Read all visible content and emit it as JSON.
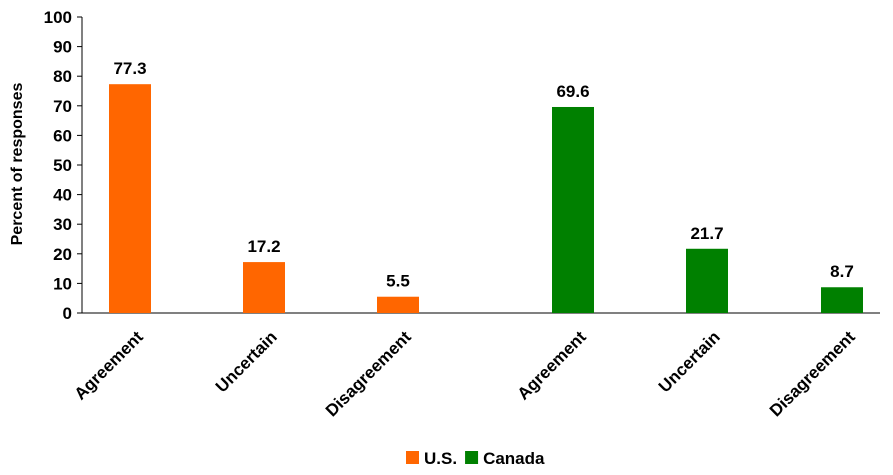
{
  "chart_data": {
    "type": "bar",
    "ylabel": "Percent of responses",
    "xlabel": "",
    "ylim": [
      0,
      100
    ],
    "yticks": [
      0,
      10,
      20,
      30,
      40,
      50,
      60,
      70,
      80,
      90,
      100
    ],
    "grid": false,
    "legend_position": "bottom",
    "series": [
      {
        "name": "U.S.",
        "color": "#FF6600",
        "categories": [
          "Agreement",
          "Uncertain",
          "Disagreement"
        ],
        "values": [
          77.3,
          17.2,
          5.5
        ],
        "labels": [
          "77.3",
          "17.2",
          "5.5"
        ]
      },
      {
        "name": "Canada",
        "color": "#008000",
        "categories": [
          "Agreement",
          "Uncertain",
          "Disagreement"
        ],
        "values": [
          69.6,
          21.7,
          8.7
        ],
        "labels": [
          "69.6",
          "21.7",
          "8.7"
        ]
      }
    ]
  }
}
